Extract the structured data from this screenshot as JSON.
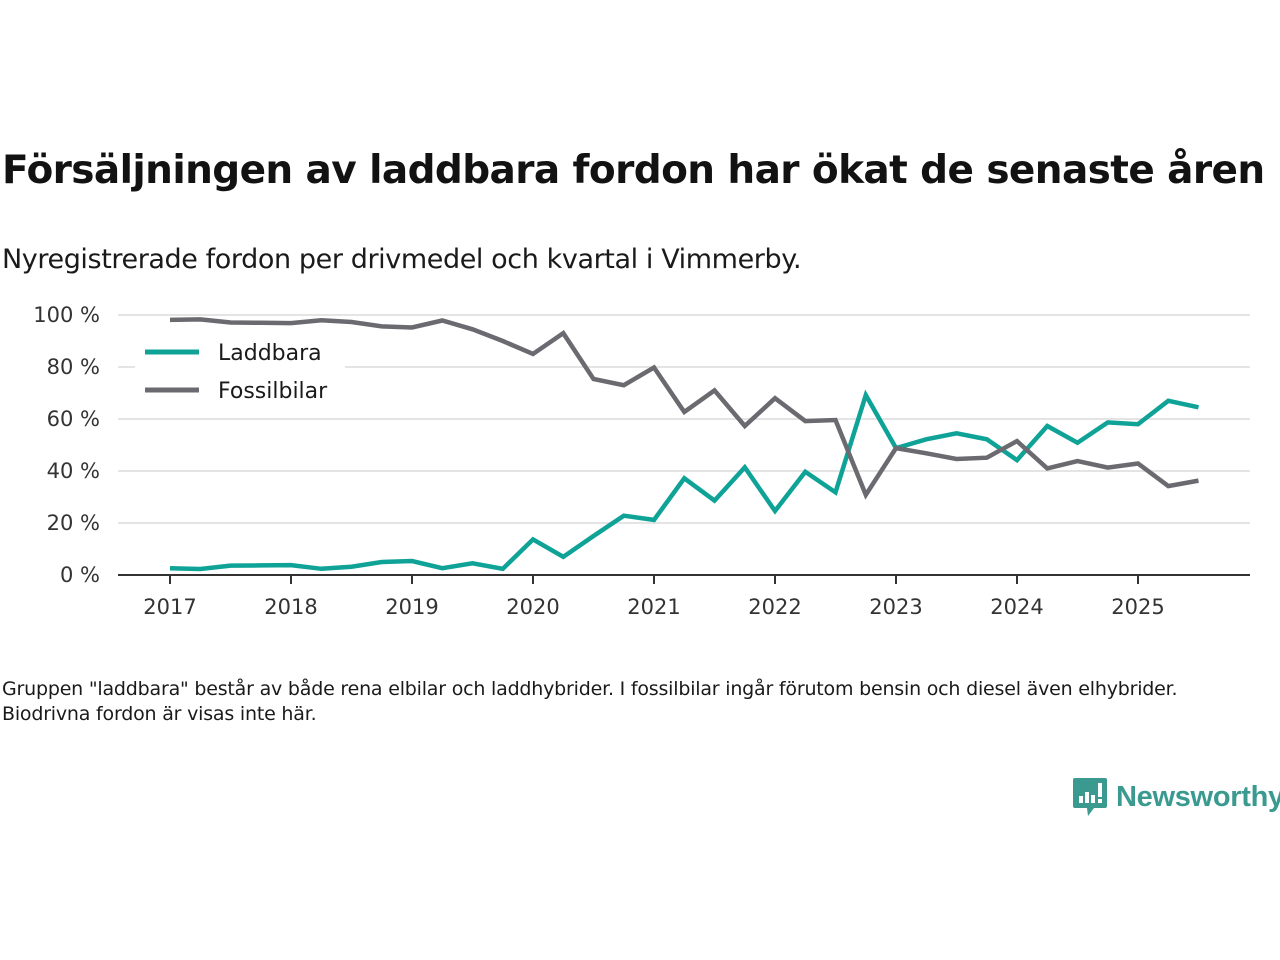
{
  "header": {
    "title": "Försäljningen av laddbara fordon har ökat de senaste åren",
    "subtitle": "Nyregistrerade fordon per drivmedel och kvartal i Vimmerby."
  },
  "footer": {
    "note": "Gruppen \"laddbara\" består av både rena elbilar och laddhybrider. I fossilbilar ingår förutom bensin och diesel även elhybrider. Biodrivna fordon är visas inte här.",
    "brand": "Newsworthy",
    "brand_icon": "newsworthy-logo-icon",
    "brand_color": "#3a9a90"
  },
  "chart_data": {
    "type": "line",
    "title": "Försäljningen av laddbara fordon har ökat de senaste åren",
    "subtitle": "Nyregistrerade fordon per drivmedel och kvartal i Vimmerby.",
    "xlabel": "",
    "ylabel": "",
    "x_unit": "quarter",
    "x": [
      "2017Q1",
      "2017Q2",
      "2017Q3",
      "2017Q4",
      "2018Q1",
      "2018Q2",
      "2018Q3",
      "2018Q4",
      "2019Q1",
      "2019Q2",
      "2019Q3",
      "2019Q4",
      "2020Q1",
      "2020Q2",
      "2020Q3",
      "2020Q4",
      "2021Q1",
      "2021Q2",
      "2021Q3",
      "2021Q4",
      "2022Q1",
      "2022Q2",
      "2022Q3",
      "2022Q4",
      "2023Q1",
      "2023Q2",
      "2023Q3",
      "2023Q4",
      "2024Q1",
      "2024Q2",
      "2024Q3",
      "2024Q4",
      "2025Q1",
      "2025Q2",
      "2025Q3"
    ],
    "x_ticks": [
      "2017",
      "2018",
      "2019",
      "2020",
      "2021",
      "2022",
      "2023",
      "2024",
      "2025"
    ],
    "y_ticks": [
      0,
      20,
      40,
      60,
      80,
      100
    ],
    "y_tick_labels": [
      "0 %",
      "20 %",
      "40 %",
      "60 %",
      "80 %",
      "100 %"
    ],
    "ylim": [
      0,
      100
    ],
    "grid": true,
    "legend_position": "top-left",
    "series": [
      {
        "name": "Laddbara",
        "color": "#0fa398",
        "values": [
          2.6,
          2.3,
          3.6,
          3.7,
          3.8,
          2.4,
          3.2,
          5.0,
          5.4,
          2.6,
          4.5,
          2.4,
          13.7,
          7.0,
          15.0,
          22.8,
          21.2,
          37.2,
          28.6,
          41.4,
          24.6,
          39.7,
          31.8,
          69.2,
          48.8,
          52.2,
          54.5,
          52.2,
          44.2,
          57.3,
          50.9,
          58.7,
          58.0,
          67.0,
          64.5
        ]
      },
      {
        "name": "Fossilbilar",
        "color": "#6b6a70",
        "values": [
          98.1,
          98.3,
          97.1,
          97.0,
          96.9,
          98.0,
          97.3,
          95.6,
          95.2,
          97.9,
          94.5,
          90.0,
          85.0,
          93.0,
          75.4,
          73.0,
          79.8,
          62.7,
          71.0,
          57.3,
          68.0,
          59.2,
          59.6,
          30.8,
          48.8,
          46.8,
          44.6,
          45.1,
          51.5,
          41.0,
          43.8,
          41.3,
          42.9,
          34.2,
          36.3
        ]
      }
    ]
  }
}
